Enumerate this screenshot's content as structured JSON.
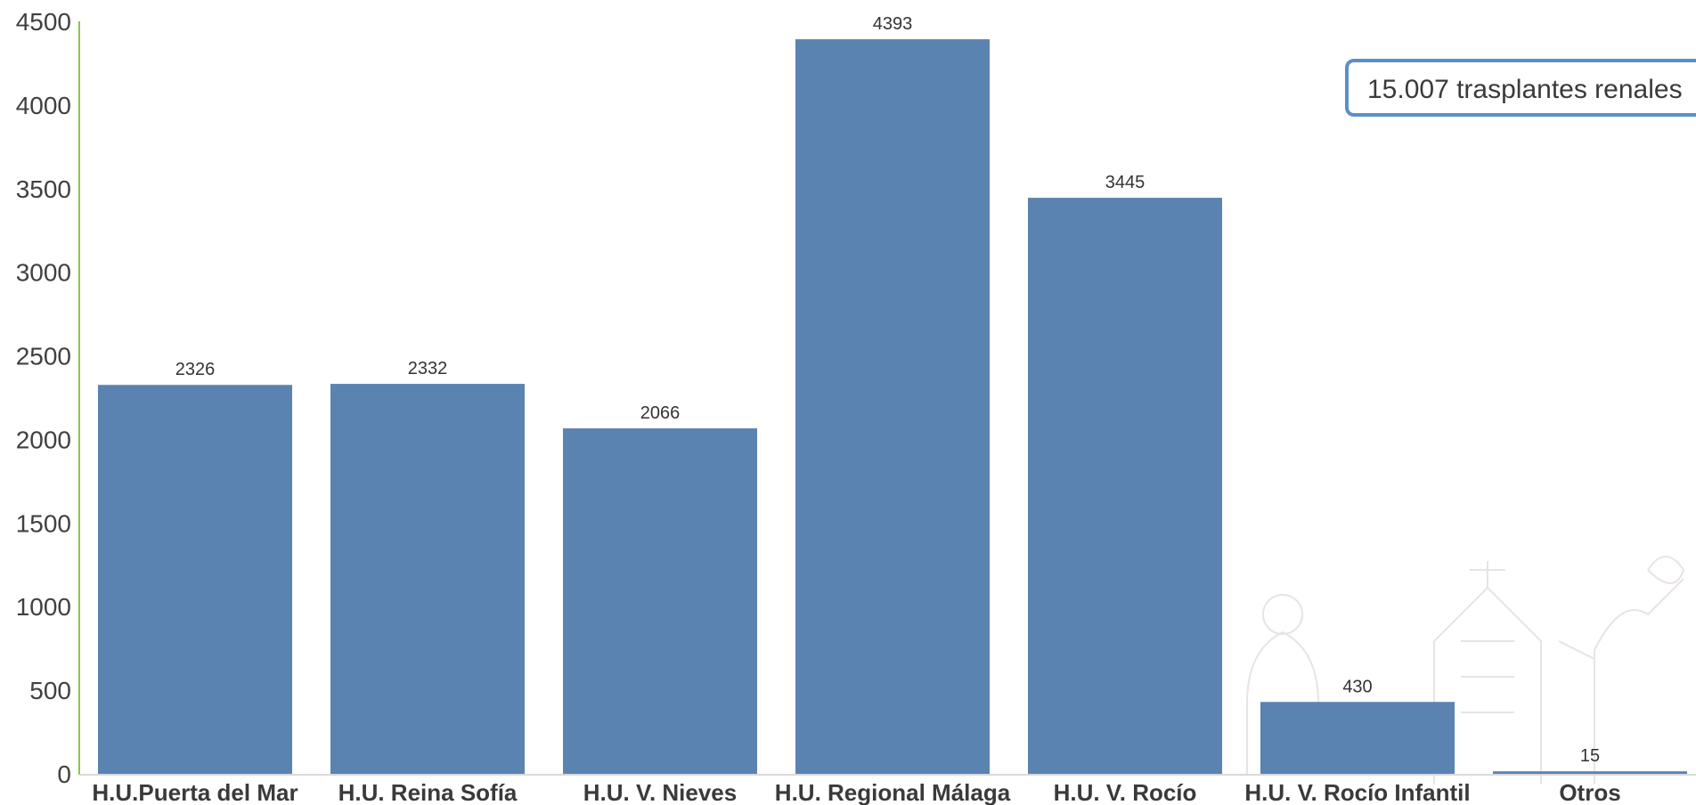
{
  "chart_data": {
    "type": "bar",
    "categories": [
      "H.U.Puerta del Mar",
      "H.U. Reina Sofía",
      "H.U. V. Nieves",
      "H.U. Regional Málaga",
      "H.U. V. Rocío",
      "H.U. V. Rocío Infantil",
      "Otros"
    ],
    "values": [
      2326,
      2332,
      2066,
      4393,
      3445,
      430,
      15
    ],
    "data_labels": [
      "2326",
      "2332",
      "2066",
      "4393",
      "3445",
      "430",
      "15"
    ],
    "title": "",
    "xlabel": "",
    "ylabel": "",
    "ylim": [
      0,
      4500
    ],
    "yticks": [
      0,
      500,
      1000,
      1500,
      2000,
      2500,
      3000,
      3500,
      4000,
      4500
    ],
    "grid": false,
    "legend": "none",
    "annotation": "15.007 trasplantes renales",
    "colors": {
      "bar": "#5a83b1",
      "axis": "#8cc34a",
      "callout_border": "#5b8fc9"
    }
  }
}
